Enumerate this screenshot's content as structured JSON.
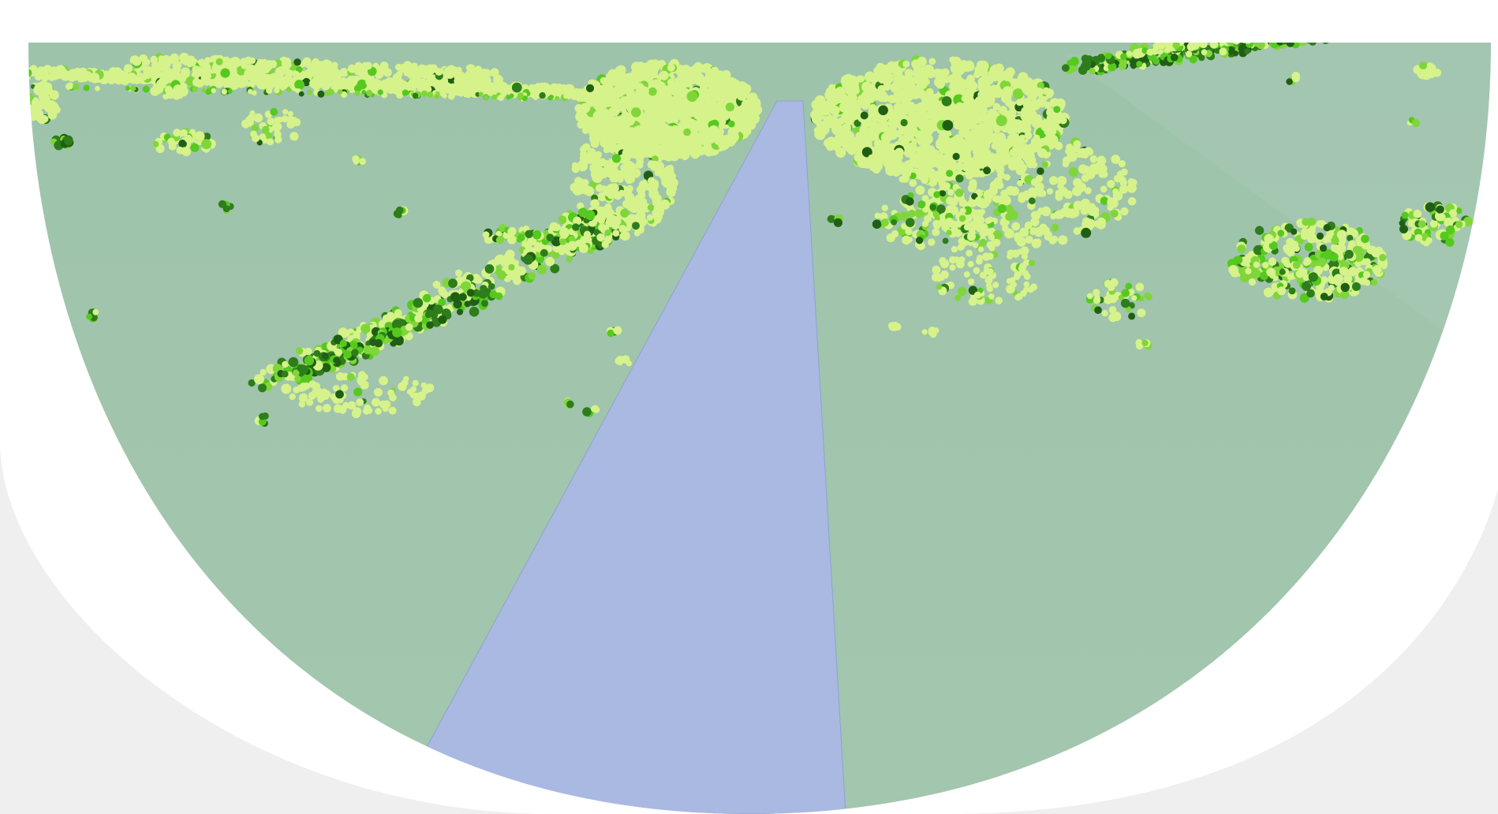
{
  "view": {
    "kind": "perspective-3d-map",
    "text_labels": []
  },
  "colors": {
    "page_background": "#efefef",
    "frame_ring": "#ffffff",
    "terrain": "#a3c6ae",
    "terrain_far": "#9ec3ab",
    "water_channel": "#aab9e2",
    "channel_edge": "#8ea3cf",
    "vegetation_pale": "#d6f28a",
    "vegetation_mid": "#7fd63a",
    "vegetation_bright": "#55c91e",
    "vegetation_dark": "#2e7d1b",
    "vegetation_darkest": "#1f5f14"
  },
  "icons": {
    "terrain": "terrain-surface",
    "water": "river-channel",
    "points": "vegetation-point-cloud"
  }
}
